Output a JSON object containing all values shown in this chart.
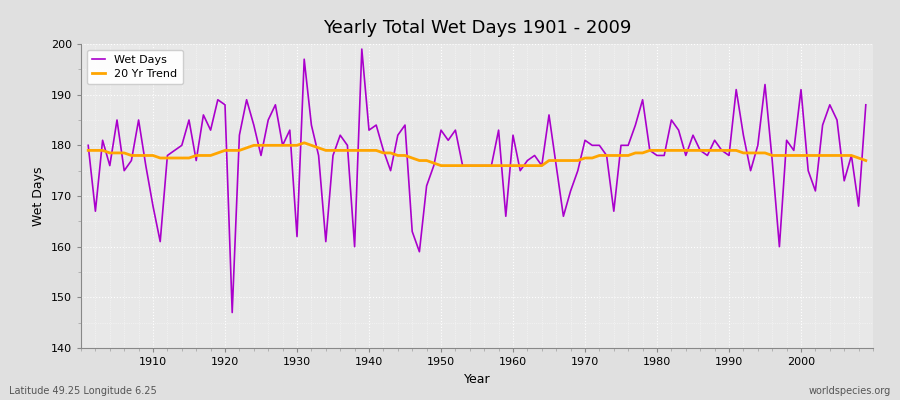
{
  "title": "Yearly Total Wet Days 1901 - 2009",
  "xlabel": "Year",
  "ylabel": "Wet Days",
  "footnote_left": "Latitude 49.25 Longitude 6.25",
  "footnote_right": "worldspecies.org",
  "legend_wet_days": "Wet Days",
  "legend_trend": "20 Yr Trend",
  "wet_days_color": "#AA00CC",
  "trend_color": "#FFA500",
  "background_color": "#E0E0E0",
  "plot_bg_color": "#E8E8E8",
  "ylim": [
    140,
    200
  ],
  "xlim": [
    1900,
    2010
  ],
  "xticks": [
    1910,
    1920,
    1930,
    1940,
    1950,
    1960,
    1970,
    1980,
    1990,
    2000
  ],
  "yticks": [
    140,
    150,
    160,
    170,
    180,
    190,
    200
  ],
  "years": [
    1901,
    1902,
    1903,
    1904,
    1905,
    1906,
    1907,
    1908,
    1909,
    1910,
    1911,
    1912,
    1913,
    1914,
    1915,
    1916,
    1917,
    1918,
    1919,
    1920,
    1921,
    1922,
    1923,
    1924,
    1925,
    1926,
    1927,
    1928,
    1929,
    1930,
    1931,
    1932,
    1933,
    1934,
    1935,
    1936,
    1937,
    1938,
    1939,
    1940,
    1941,
    1942,
    1943,
    1944,
    1945,
    1946,
    1947,
    1948,
    1949,
    1950,
    1951,
    1952,
    1953,
    1954,
    1955,
    1956,
    1957,
    1958,
    1959,
    1960,
    1961,
    1962,
    1963,
    1964,
    1965,
    1966,
    1967,
    1968,
    1969,
    1970,
    1971,
    1972,
    1973,
    1974,
    1975,
    1976,
    1977,
    1978,
    1979,
    1980,
    1981,
    1982,
    1983,
    1984,
    1985,
    1986,
    1987,
    1988,
    1989,
    1990,
    1991,
    1992,
    1993,
    1994,
    1995,
    1996,
    1997,
    1998,
    1999,
    2000,
    2001,
    2002,
    2003,
    2004,
    2005,
    2006,
    2007,
    2008,
    2009
  ],
  "wet_days": [
    180,
    167,
    181,
    176,
    185,
    175,
    177,
    185,
    176,
    168,
    161,
    178,
    179,
    180,
    185,
    177,
    186,
    183,
    189,
    188,
    147,
    182,
    189,
    184,
    178,
    185,
    188,
    180,
    183,
    162,
    197,
    184,
    178,
    161,
    178,
    182,
    180,
    160,
    199,
    183,
    184,
    179,
    175,
    182,
    184,
    163,
    159,
    172,
    176,
    183,
    181,
    183,
    176,
    176,
    176,
    176,
    176,
    183,
    166,
    182,
    175,
    177,
    178,
    176,
    186,
    176,
    166,
    171,
    175,
    181,
    180,
    180,
    178,
    167,
    180,
    180,
    184,
    189,
    179,
    178,
    178,
    185,
    183,
    178,
    182,
    179,
    178,
    181,
    179,
    178,
    191,
    182,
    175,
    180,
    192,
    177,
    160,
    181,
    179,
    191,
    175,
    171,
    184,
    188,
    185,
    173,
    178,
    168,
    188
  ],
  "trend": [
    179.0,
    179.0,
    179.0,
    178.5,
    178.5,
    178.5,
    178.0,
    178.0,
    178.0,
    178.0,
    177.5,
    177.5,
    177.5,
    177.5,
    177.5,
    178.0,
    178.0,
    178.0,
    178.5,
    179.0,
    179.0,
    179.0,
    179.5,
    180.0,
    180.0,
    180.0,
    180.0,
    180.0,
    180.0,
    180.0,
    180.5,
    180.0,
    179.5,
    179.0,
    179.0,
    179.0,
    179.0,
    179.0,
    179.0,
    179.0,
    179.0,
    178.5,
    178.5,
    178.0,
    178.0,
    177.5,
    177.0,
    177.0,
    176.5,
    176.0,
    176.0,
    176.0,
    176.0,
    176.0,
    176.0,
    176.0,
    176.0,
    176.0,
    176.0,
    176.0,
    176.0,
    176.0,
    176.0,
    176.0,
    177.0,
    177.0,
    177.0,
    177.0,
    177.0,
    177.5,
    177.5,
    178.0,
    178.0,
    178.0,
    178.0,
    178.0,
    178.5,
    178.5,
    179.0,
    179.0,
    179.0,
    179.0,
    179.0,
    179.0,
    179.0,
    179.0,
    179.0,
    179.0,
    179.0,
    179.0,
    179.0,
    178.5,
    178.5,
    178.5,
    178.5,
    178.0,
    178.0,
    178.0,
    178.0,
    178.0,
    178.0,
    178.0,
    178.0,
    178.0,
    178.0,
    178.0,
    178.0,
    177.5,
    177.0
  ]
}
